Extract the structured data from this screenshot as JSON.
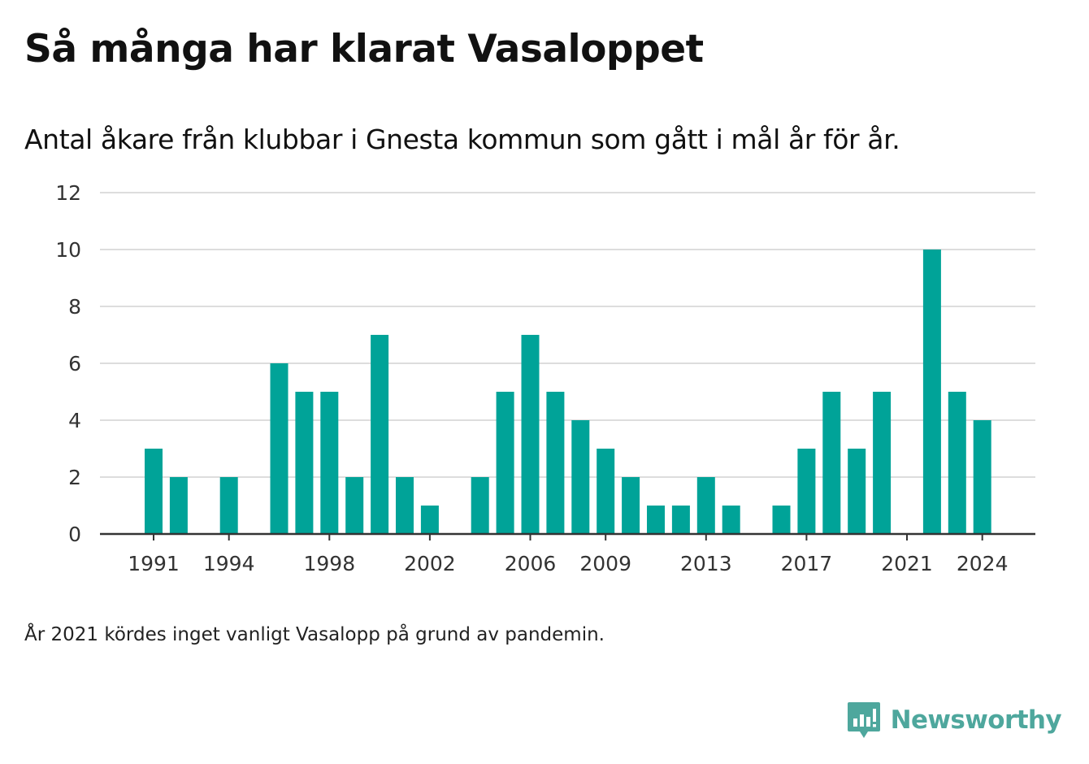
{
  "header": {
    "title": "Så många har klarat Vasaloppet",
    "subtitle": "Antal åkare från klubbar i Gnesta kommun som gått i mål år för år."
  },
  "footnote": "År 2021 kördes inget vanligt Vasalopp på grund av pandemin.",
  "brand": {
    "name": "Newsworthy",
    "icon": "newsworthy-logo-icon",
    "color": "#4ea79d"
  },
  "colors": {
    "bar": "#00a398",
    "grid": "#dddddd",
    "axis": "#333333",
    "text": "#333333"
  },
  "chart_data": {
    "type": "bar",
    "title": "Så många har klarat Vasaloppet",
    "xlabel": "",
    "ylabel": "",
    "ylim": [
      0,
      12
    ],
    "yticks": [
      0,
      2,
      4,
      6,
      8,
      10,
      12
    ],
    "grid": true,
    "xtick_labels": [
      "1991",
      "1994",
      "1998",
      "2002",
      "2006",
      "2009",
      "2013",
      "2017",
      "2021",
      "2024"
    ],
    "categories": [
      1991,
      1992,
      1993,
      1994,
      1995,
      1996,
      1997,
      1998,
      1999,
      2000,
      2001,
      2002,
      2003,
      2004,
      2005,
      2006,
      2007,
      2008,
      2009,
      2010,
      2011,
      2012,
      2013,
      2014,
      2015,
      2016,
      2017,
      2018,
      2019,
      2020,
      2021,
      2022,
      2023,
      2024
    ],
    "values": [
      3,
      2,
      0,
      2,
      0,
      6,
      5,
      5,
      2,
      7,
      2,
      1,
      0,
      2,
      5,
      7,
      5,
      4,
      3,
      2,
      1,
      1,
      2,
      1,
      0,
      1,
      3,
      5,
      3,
      5,
      0,
      10,
      5,
      4
    ]
  }
}
